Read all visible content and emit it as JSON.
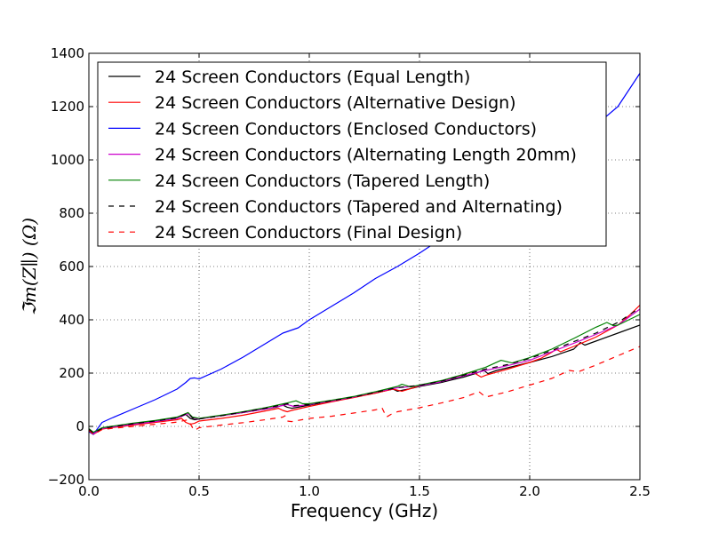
{
  "chart_data": {
    "type": "line",
    "title": "",
    "xlabel": "Frequency (GHz)",
    "ylabel": "ℑm(Z∥) (Ω)",
    "xlim": [
      0.0,
      2.5
    ],
    "ylim": [
      -200,
      1400
    ],
    "xticks": [
      "0.0",
      "0.5",
      "1.0",
      "1.5",
      "2.0",
      "2.5"
    ],
    "yticks": [
      "−200",
      "0",
      "200",
      "400",
      "600",
      "800",
      "1000",
      "1200",
      "1400"
    ],
    "xtick_values": [
      0.0,
      0.5,
      1.0,
      1.5,
      2.0,
      2.5
    ],
    "ytick_values": [
      -200,
      0,
      200,
      400,
      600,
      800,
      1000,
      1200,
      1400
    ],
    "grid": true,
    "legend_position": "top-left",
    "series": [
      {
        "name": "24 Screen Conductors (Equal Length)",
        "color": "#000000",
        "dash": "solid",
        "points": [
          [
            0.0,
            -10
          ],
          [
            0.02,
            -25
          ],
          [
            0.06,
            -8
          ],
          [
            0.1,
            -2
          ],
          [
            0.2,
            10
          ],
          [
            0.3,
            20
          ],
          [
            0.4,
            32
          ],
          [
            0.44,
            45
          ],
          [
            0.46,
            30
          ],
          [
            0.48,
            25
          ],
          [
            0.5,
            28
          ],
          [
            0.6,
            40
          ],
          [
            0.7,
            52
          ],
          [
            0.8,
            65
          ],
          [
            0.85,
            72
          ],
          [
            0.88,
            80
          ],
          [
            0.9,
            72
          ],
          [
            0.92,
            68
          ],
          [
            0.95,
            72
          ],
          [
            1.0,
            80
          ],
          [
            1.1,
            95
          ],
          [
            1.2,
            110
          ],
          [
            1.3,
            125
          ],
          [
            1.35,
            135
          ],
          [
            1.38,
            140
          ],
          [
            1.4,
            132
          ],
          [
            1.45,
            140
          ],
          [
            1.5,
            150
          ],
          [
            1.6,
            165
          ],
          [
            1.7,
            185
          ],
          [
            1.76,
            200
          ],
          [
            1.79,
            212
          ],
          [
            1.81,
            198
          ],
          [
            1.85,
            210
          ],
          [
            1.9,
            220
          ],
          [
            2.0,
            240
          ],
          [
            2.1,
            262
          ],
          [
            2.2,
            290
          ],
          [
            2.23,
            315
          ],
          [
            2.25,
            305
          ],
          [
            2.3,
            320
          ],
          [
            2.4,
            350
          ],
          [
            2.5,
            380
          ]
        ]
      },
      {
        "name": "24 Screen Conductors (Alternative Design)",
        "color": "#ff0000",
        "dash": "solid",
        "points": [
          [
            0.0,
            -15
          ],
          [
            0.02,
            -30
          ],
          [
            0.06,
            -10
          ],
          [
            0.1,
            -5
          ],
          [
            0.2,
            5
          ],
          [
            0.3,
            15
          ],
          [
            0.4,
            25
          ],
          [
            0.42,
            30
          ],
          [
            0.44,
            15
          ],
          [
            0.46,
            8
          ],
          [
            0.48,
            12
          ],
          [
            0.5,
            20
          ],
          [
            0.6,
            30
          ],
          [
            0.7,
            42
          ],
          [
            0.8,
            58
          ],
          [
            0.86,
            68
          ],
          [
            0.88,
            60
          ],
          [
            0.9,
            55
          ],
          [
            0.92,
            60
          ],
          [
            1.0,
            75
          ],
          [
            1.1,
            92
          ],
          [
            1.2,
            108
          ],
          [
            1.3,
            125
          ],
          [
            1.38,
            140
          ],
          [
            1.42,
            132
          ],
          [
            1.5,
            152
          ],
          [
            1.6,
            170
          ],
          [
            1.7,
            195
          ],
          [
            1.74,
            205
          ],
          [
            1.78,
            185
          ],
          [
            1.8,
            192
          ],
          [
            1.9,
            215
          ],
          [
            2.0,
            240
          ],
          [
            2.05,
            255
          ],
          [
            2.1,
            278
          ],
          [
            2.12,
            290
          ],
          [
            2.14,
            280
          ],
          [
            2.2,
            300
          ],
          [
            2.3,
            335
          ],
          [
            2.4,
            380
          ],
          [
            2.45,
            415
          ],
          [
            2.5,
            455
          ]
        ]
      },
      {
        "name": "24 Screen Conductors (Enclosed Conductors)",
        "color": "#0000ff",
        "dash": "solid",
        "points": [
          [
            0.0,
            -20
          ],
          [
            0.02,
            -30
          ],
          [
            0.06,
            15
          ],
          [
            0.1,
            30
          ],
          [
            0.2,
            65
          ],
          [
            0.3,
            100
          ],
          [
            0.4,
            140
          ],
          [
            0.44,
            165
          ],
          [
            0.46,
            180
          ],
          [
            0.48,
            182
          ],
          [
            0.5,
            178
          ],
          [
            0.6,
            215
          ],
          [
            0.7,
            260
          ],
          [
            0.8,
            310
          ],
          [
            0.88,
            350
          ],
          [
            0.95,
            370
          ],
          [
            1.0,
            400
          ],
          [
            1.1,
            450
          ],
          [
            1.2,
            500
          ],
          [
            1.3,
            555
          ],
          [
            1.4,
            600
          ],
          [
            1.5,
            650
          ],
          [
            1.6,
            705
          ],
          [
            1.7,
            760
          ],
          [
            1.8,
            820
          ],
          [
            1.9,
            880
          ],
          [
            2.0,
            940
          ],
          [
            2.1,
            1000
          ],
          [
            2.2,
            1065
          ],
          [
            2.3,
            1130
          ],
          [
            2.4,
            1200
          ],
          [
            2.5,
            1325
          ]
        ]
      },
      {
        "name": "24 Screen Conductors (Alternating Length 20mm)",
        "color": "#cc00cc",
        "dash": "solid",
        "points": [
          [
            0.0,
            -12
          ],
          [
            0.02,
            -28
          ],
          [
            0.06,
            -8
          ],
          [
            0.1,
            -3
          ],
          [
            0.2,
            8
          ],
          [
            0.3,
            18
          ],
          [
            0.4,
            30
          ],
          [
            0.45,
            48
          ],
          [
            0.47,
            32
          ],
          [
            0.5,
            28
          ],
          [
            0.6,
            40
          ],
          [
            0.7,
            52
          ],
          [
            0.8,
            65
          ],
          [
            0.9,
            82
          ],
          [
            0.93,
            75
          ],
          [
            1.0,
            82
          ],
          [
            1.1,
            95
          ],
          [
            1.2,
            110
          ],
          [
            1.3,
            128
          ],
          [
            1.4,
            145
          ],
          [
            1.5,
            152
          ],
          [
            1.6,
            168
          ],
          [
            1.7,
            190
          ],
          [
            1.8,
            210
          ],
          [
            1.9,
            228
          ],
          [
            2.0,
            248
          ],
          [
            2.1,
            280
          ],
          [
            2.2,
            312
          ],
          [
            2.3,
            345
          ],
          [
            2.4,
            380
          ],
          [
            2.5,
            440
          ]
        ]
      },
      {
        "name": "24 Screen Conductors (Tapered Length)",
        "color": "#008000",
        "dash": "solid",
        "points": [
          [
            0.0,
            -8
          ],
          [
            0.02,
            -22
          ],
          [
            0.06,
            -5
          ],
          [
            0.1,
            0
          ],
          [
            0.2,
            12
          ],
          [
            0.3,
            22
          ],
          [
            0.4,
            35
          ],
          [
            0.45,
            52
          ],
          [
            0.47,
            35
          ],
          [
            0.5,
            30
          ],
          [
            0.6,
            42
          ],
          [
            0.7,
            55
          ],
          [
            0.8,
            70
          ],
          [
            0.9,
            88
          ],
          [
            0.94,
            96
          ],
          [
            0.97,
            85
          ],
          [
            1.0,
            85
          ],
          [
            1.1,
            98
          ],
          [
            1.2,
            112
          ],
          [
            1.3,
            130
          ],
          [
            1.4,
            150
          ],
          [
            1.42,
            158
          ],
          [
            1.46,
            148
          ],
          [
            1.5,
            155
          ],
          [
            1.6,
            172
          ],
          [
            1.7,
            195
          ],
          [
            1.8,
            222
          ],
          [
            1.87,
            248
          ],
          [
            1.92,
            238
          ],
          [
            2.0,
            258
          ],
          [
            2.1,
            290
          ],
          [
            2.2,
            330
          ],
          [
            2.3,
            372
          ],
          [
            2.35,
            390
          ],
          [
            2.38,
            378
          ],
          [
            2.4,
            380
          ],
          [
            2.45,
            400
          ],
          [
            2.5,
            420
          ]
        ]
      },
      {
        "name": "24 Screen Conductors (Tapered and Alternating)",
        "color": "#000000",
        "dash": "dashed",
        "points": [
          [
            0.0,
            -10
          ],
          [
            0.02,
            -26
          ],
          [
            0.06,
            -8
          ],
          [
            0.1,
            -2
          ],
          [
            0.2,
            10
          ],
          [
            0.3,
            20
          ],
          [
            0.4,
            32
          ],
          [
            0.45,
            50
          ],
          [
            0.47,
            32
          ],
          [
            0.5,
            28
          ],
          [
            0.6,
            40
          ],
          [
            0.7,
            54
          ],
          [
            0.8,
            68
          ],
          [
            0.9,
            85
          ],
          [
            0.93,
            78
          ],
          [
            1.0,
            82
          ],
          [
            1.1,
            96
          ],
          [
            1.2,
            110
          ],
          [
            1.3,
            128
          ],
          [
            1.4,
            146
          ],
          [
            1.5,
            154
          ],
          [
            1.6,
            170
          ],
          [
            1.7,
            192
          ],
          [
            1.8,
            215
          ],
          [
            1.9,
            232
          ],
          [
            2.0,
            255
          ],
          [
            2.1,
            285
          ],
          [
            2.2,
            318
          ],
          [
            2.3,
            350
          ],
          [
            2.4,
            390
          ],
          [
            2.5,
            445
          ]
        ]
      },
      {
        "name": "24 Screen Conductors (Final Design)",
        "color": "#ff0000",
        "dash": "dashed",
        "points": [
          [
            0.0,
            -15
          ],
          [
            0.02,
            -30
          ],
          [
            0.06,
            -12
          ],
          [
            0.1,
            -8
          ],
          [
            0.2,
            0
          ],
          [
            0.3,
            8
          ],
          [
            0.4,
            16
          ],
          [
            0.45,
            25
          ],
          [
            0.47,
            -5
          ],
          [
            0.48,
            -15
          ],
          [
            0.5,
            -5
          ],
          [
            0.6,
            5
          ],
          [
            0.7,
            14
          ],
          [
            0.8,
            25
          ],
          [
            0.88,
            35
          ],
          [
            0.89,
            40
          ],
          [
            0.9,
            20
          ],
          [
            0.92,
            18
          ],
          [
            1.0,
            30
          ],
          [
            1.1,
            38
          ],
          [
            1.2,
            50
          ],
          [
            1.3,
            62
          ],
          [
            1.33,
            70
          ],
          [
            1.35,
            35
          ],
          [
            1.37,
            45
          ],
          [
            1.4,
            55
          ],
          [
            1.5,
            70
          ],
          [
            1.6,
            88
          ],
          [
            1.7,
            108
          ],
          [
            1.77,
            130
          ],
          [
            1.8,
            110
          ],
          [
            1.9,
            130
          ],
          [
            2.0,
            155
          ],
          [
            2.1,
            180
          ],
          [
            2.18,
            210
          ],
          [
            2.22,
            205
          ],
          [
            2.3,
            230
          ],
          [
            2.4,
            265
          ],
          [
            2.5,
            300
          ]
        ]
      }
    ]
  }
}
